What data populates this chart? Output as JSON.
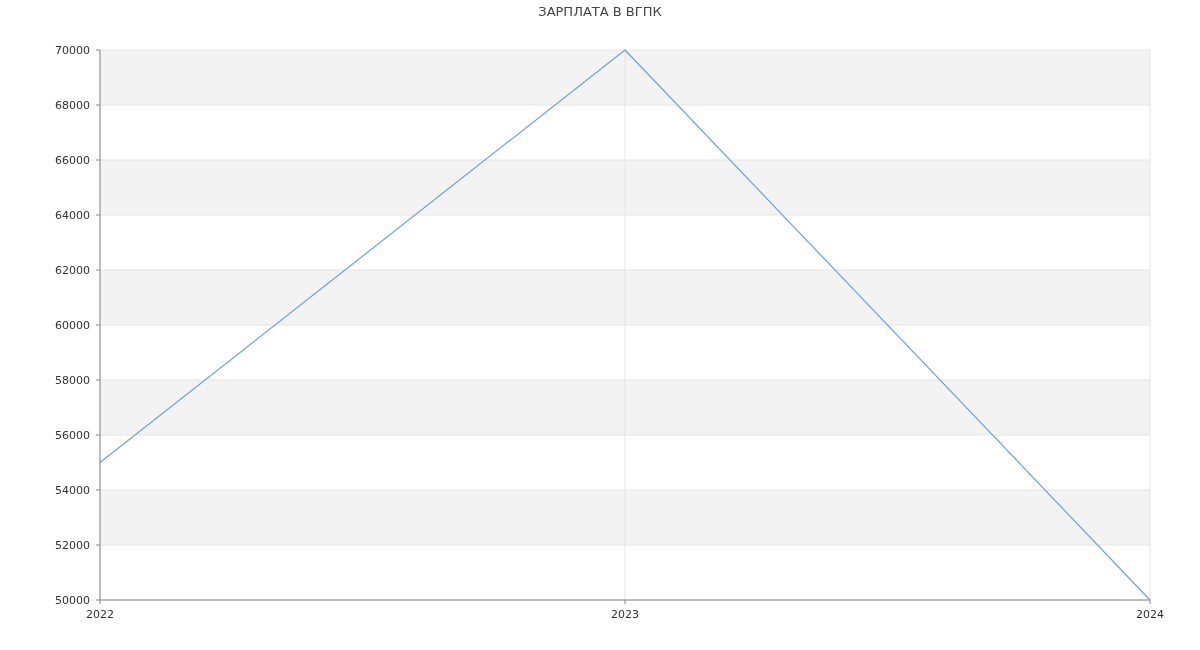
{
  "chart_data": {
    "type": "line",
    "title": "ЗАРПЛАТА В ВГПК",
    "x": [
      2022,
      2023,
      2024
    ],
    "series": [
      {
        "color": "#6f9ef0",
        "values": [
          55000,
          70000,
          50000
        ]
      }
    ],
    "xlim": [
      2022,
      2024
    ],
    "xticks": [
      2022,
      2023,
      2024
    ],
    "ylim": [
      50000,
      70000
    ],
    "yticks": [
      50000,
      52000,
      54000,
      56000,
      58000,
      60000,
      62000,
      64000,
      66000,
      68000,
      70000
    ],
    "grid": true,
    "marker": "none",
    "line_style": "solid"
  }
}
